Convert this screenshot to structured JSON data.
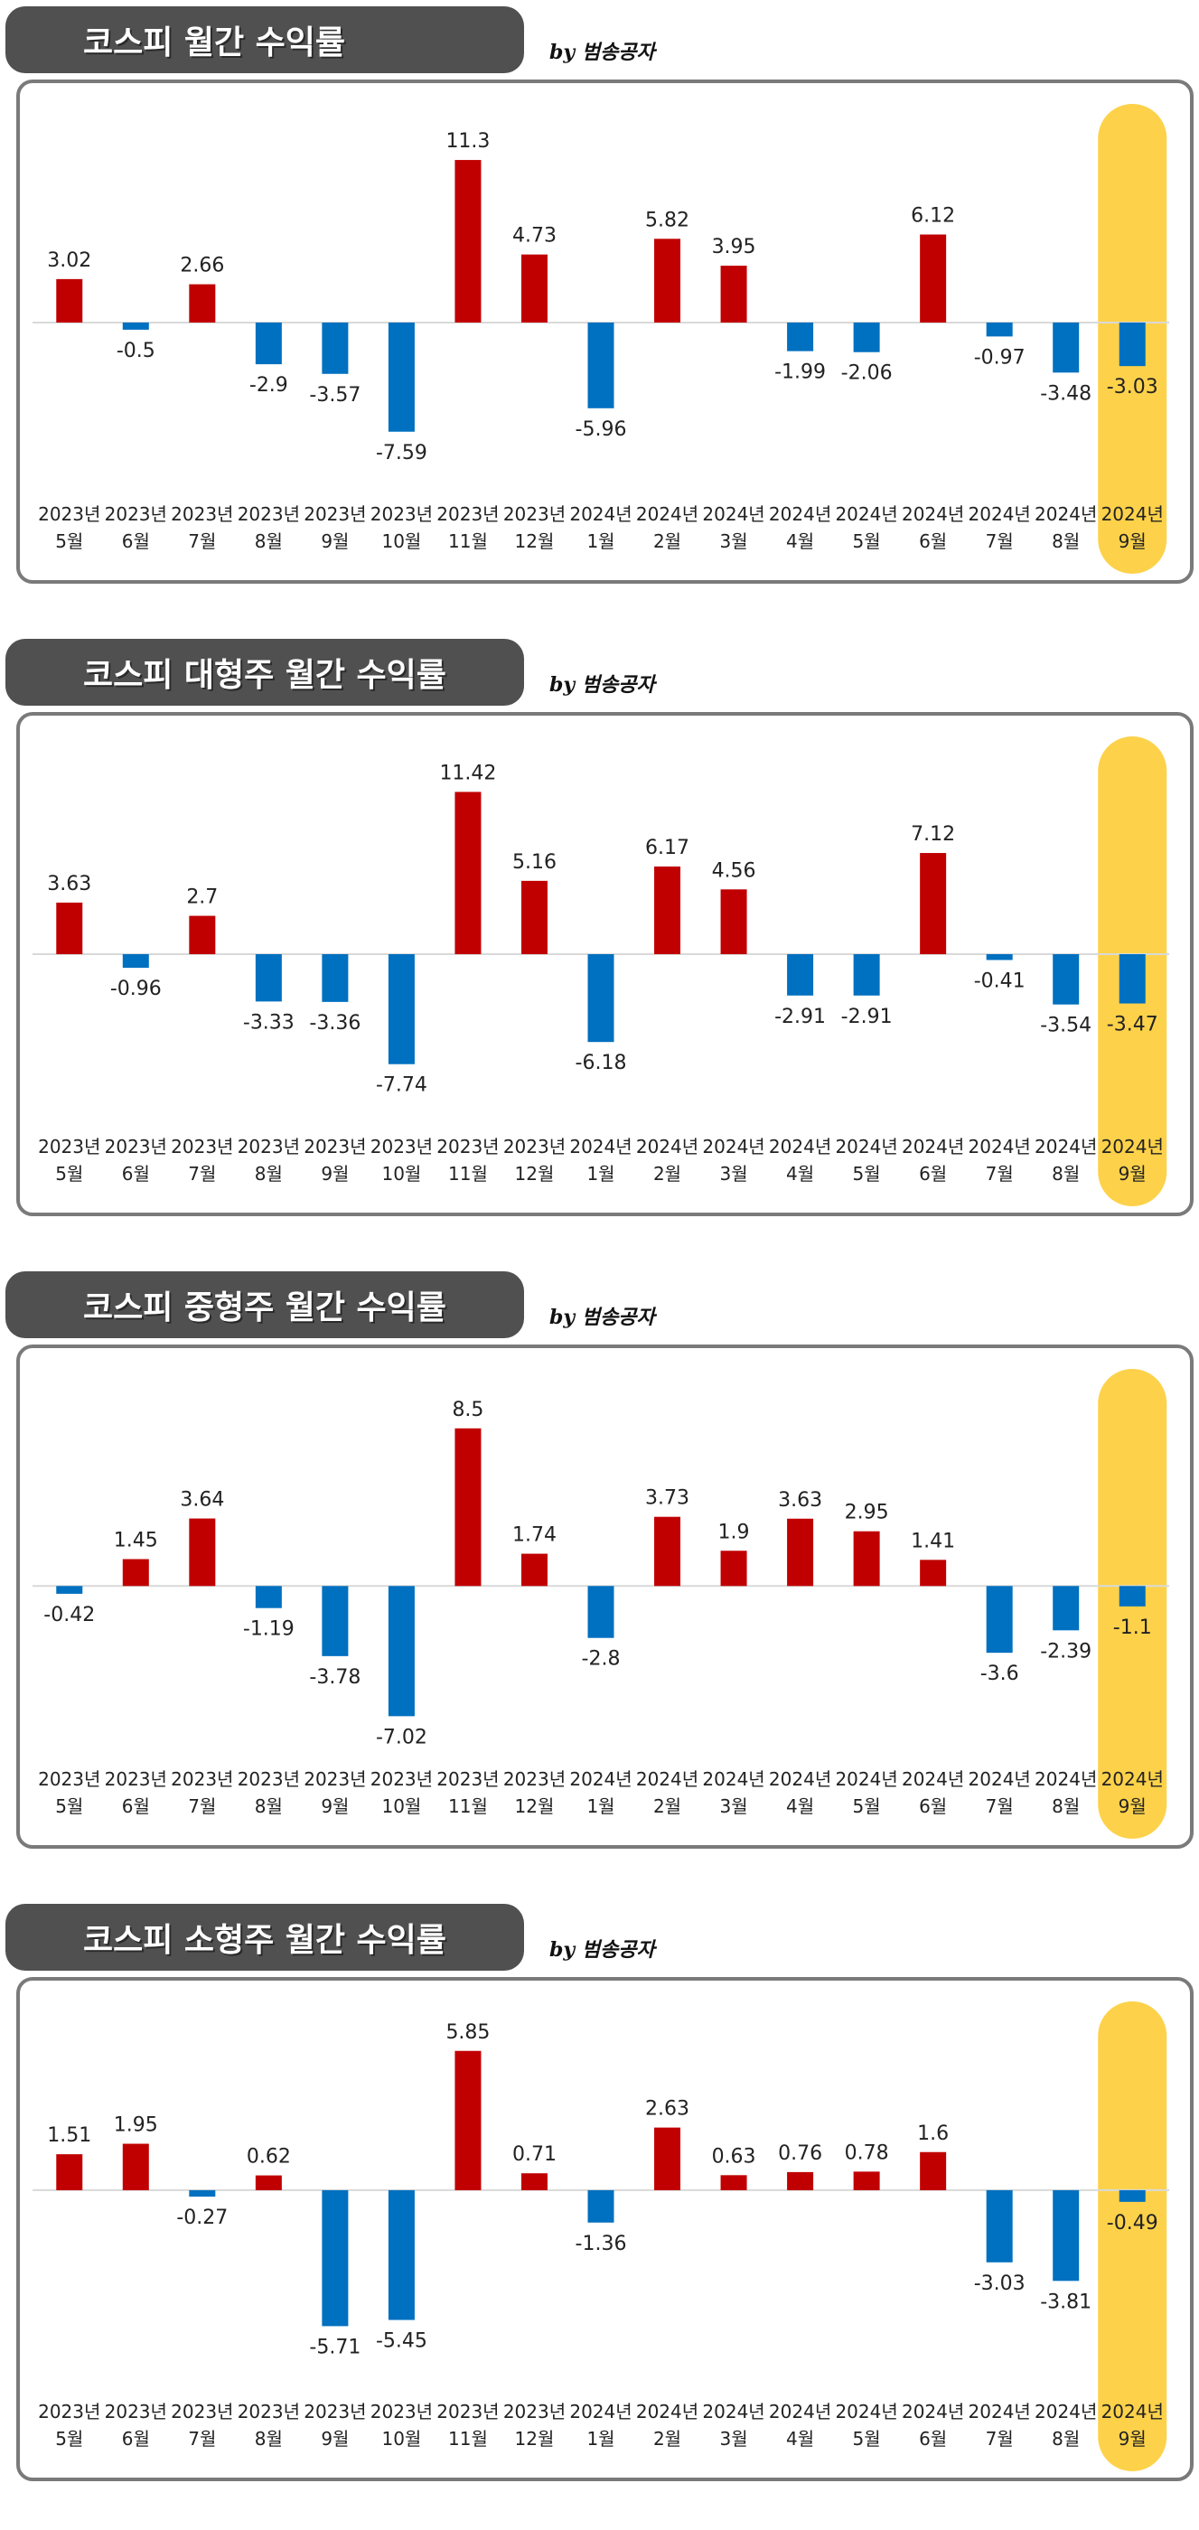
{
  "byline": "by 범송공자",
  "categories": [
    [
      "2023년",
      "5월"
    ],
    [
      "2023년",
      "6월"
    ],
    [
      "2023년",
      "7월"
    ],
    [
      "2023년",
      "8월"
    ],
    [
      "2023년",
      "9월"
    ],
    [
      "2023년",
      "10월"
    ],
    [
      "2023년",
      "11월"
    ],
    [
      "2023년",
      "12월"
    ],
    [
      "2024년",
      "1월"
    ],
    [
      "2024년",
      "2월"
    ],
    [
      "2024년",
      "3월"
    ],
    [
      "2024년",
      "4월"
    ],
    [
      "2024년",
      "5월"
    ],
    [
      "2024년",
      "6월"
    ],
    [
      "2024년",
      "7월"
    ],
    [
      "2024년",
      "8월"
    ],
    [
      "2024년",
      "9월"
    ]
  ],
  "colors": {
    "positive": "#c00000",
    "negative": "#0070c0",
    "highlight": "#fdd24a",
    "baseline": "#d9d9d9"
  },
  "highlight_index": 16,
  "chart_data": [
    {
      "type": "bar",
      "title": "코스피 월간 수익률",
      "values": [
        3.02,
        -0.5,
        2.66,
        -2.9,
        -3.57,
        -7.59,
        11.3,
        4.73,
        -5.96,
        5.82,
        3.95,
        -1.99,
        -2.06,
        6.12,
        -0.97,
        -3.48,
        -3.03
      ],
      "labels": [
        "3.02",
        "-0.5",
        "2.66",
        "-2.9",
        "-3.57",
        "-7.59",
        "11.3",
        "4.73",
        "-5.96",
        "5.82",
        "3.95",
        "-1.99",
        "-2.06",
        "6.12",
        "-0.97",
        "-3.48",
        "-3.03"
      ],
      "ylim": [
        -11.5,
        13.0
      ]
    },
    {
      "type": "bar",
      "title": "코스피 대형주 월간 수익률",
      "values": [
        3.63,
        -0.96,
        2.7,
        -3.33,
        -3.36,
        -7.74,
        11.42,
        5.16,
        -6.18,
        6.17,
        4.56,
        -2.91,
        -2.91,
        7.12,
        -0.41,
        -3.54,
        -3.47
      ],
      "labels": [
        "3.63",
        "-0.96",
        "2.7",
        "-3.33",
        "-3.36",
        "-7.74",
        "11.42",
        "5.16",
        "-6.18",
        "6.17",
        "4.56",
        "-2.91",
        "-2.91",
        "7.12",
        "-0.41",
        "-3.54",
        "-3.47"
      ],
      "ylim": [
        -11.7,
        13.1
      ]
    },
    {
      "type": "bar",
      "title": "코스피 중형주 월간 수익률",
      "values": [
        -0.42,
        1.45,
        3.64,
        -1.19,
        -3.78,
        -7.02,
        8.5,
        1.74,
        -2.8,
        3.73,
        1.9,
        3.63,
        2.95,
        1.41,
        -3.6,
        -2.39,
        -1.1
      ],
      "labels": [
        "-0.42",
        "1.45",
        "3.64",
        "-1.19",
        "-3.78",
        "-7.02",
        "8.5",
        "1.74",
        "-2.8",
        "3.73",
        "1.9",
        "3.63",
        "2.95",
        "1.41",
        "-3.6",
        "-2.39",
        "-1.1"
      ],
      "ylim": [
        -9.0,
        10.0
      ]
    },
    {
      "type": "bar",
      "title": "코스피 소형주 월간 수익률",
      "values": [
        1.51,
        1.95,
        -0.27,
        0.62,
        -5.71,
        -5.45,
        5.85,
        0.71,
        -1.36,
        2.63,
        0.63,
        0.76,
        0.78,
        1.6,
        -3.03,
        -3.81,
        -0.49
      ],
      "labels": [
        "1.51",
        "1.95",
        "-0.27",
        "0.62",
        "-5.71",
        "-5.45",
        "5.85",
        "0.71",
        "-1.36",
        "2.63",
        "0.63",
        "0.76",
        "0.78",
        "1.6",
        "-3.03",
        "-3.81",
        "-0.49"
      ],
      "ylim": [
        -8.2,
        6.6
      ]
    }
  ]
}
